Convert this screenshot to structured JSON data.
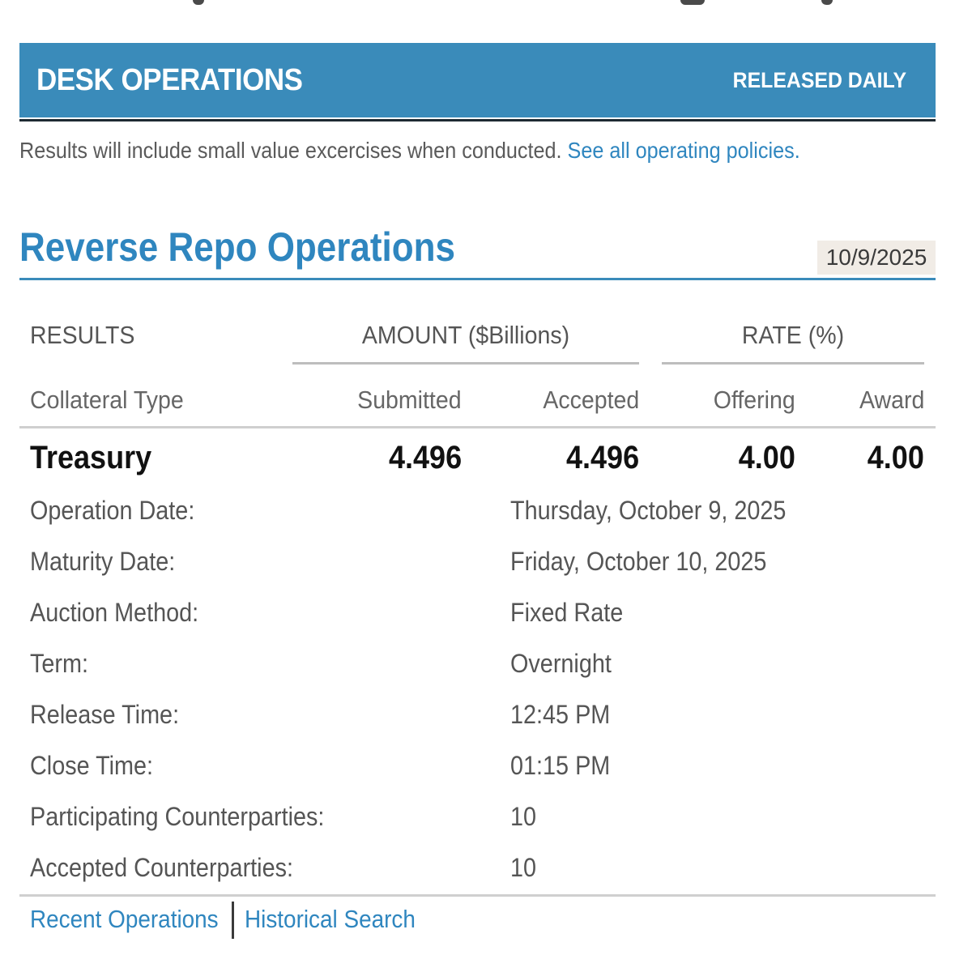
{
  "header": {
    "title": "DESK OPERATIONS",
    "release": "RELEASED DAILY"
  },
  "note": {
    "text": "Results will include small value excercises when conducted.",
    "link": "See all operating policies."
  },
  "section": {
    "title": "Reverse Repo Operations",
    "date": "10/9/2025"
  },
  "table": {
    "results_label": "RESULTS",
    "amount_group": "AMOUNT ($Billions)",
    "rate_group": "RATE (%)",
    "columns": [
      "Collateral Type",
      "Submitted",
      "Accepted",
      "Offering",
      "Award"
    ],
    "row": {
      "collateral": "Treasury",
      "submitted": "4.496",
      "accepted": "4.496",
      "offering": "4.00",
      "award": "4.00"
    }
  },
  "details": [
    {
      "label": "Operation Date:",
      "value": "Thursday, October 9, 2025"
    },
    {
      "label": "Maturity Date:",
      "value": "Friday, October 10, 2025"
    },
    {
      "label": "Auction Method:",
      "value": "Fixed Rate"
    },
    {
      "label": "Term:",
      "value": "Overnight"
    },
    {
      "label": "Release Time:",
      "value": "12:45 PM"
    },
    {
      "label": "Close Time:",
      "value": "01:15 PM"
    },
    {
      "label": "Participating Counterparties:",
      "value": "10"
    },
    {
      "label": "Accepted Counterparties:",
      "value": "10"
    }
  ],
  "footer": {
    "recent": "Recent Operations",
    "historical": "Historical Search"
  },
  "colors": {
    "header_bg": "#3a8bba",
    "link": "#2f86bf",
    "title": "#2f86bf"
  }
}
